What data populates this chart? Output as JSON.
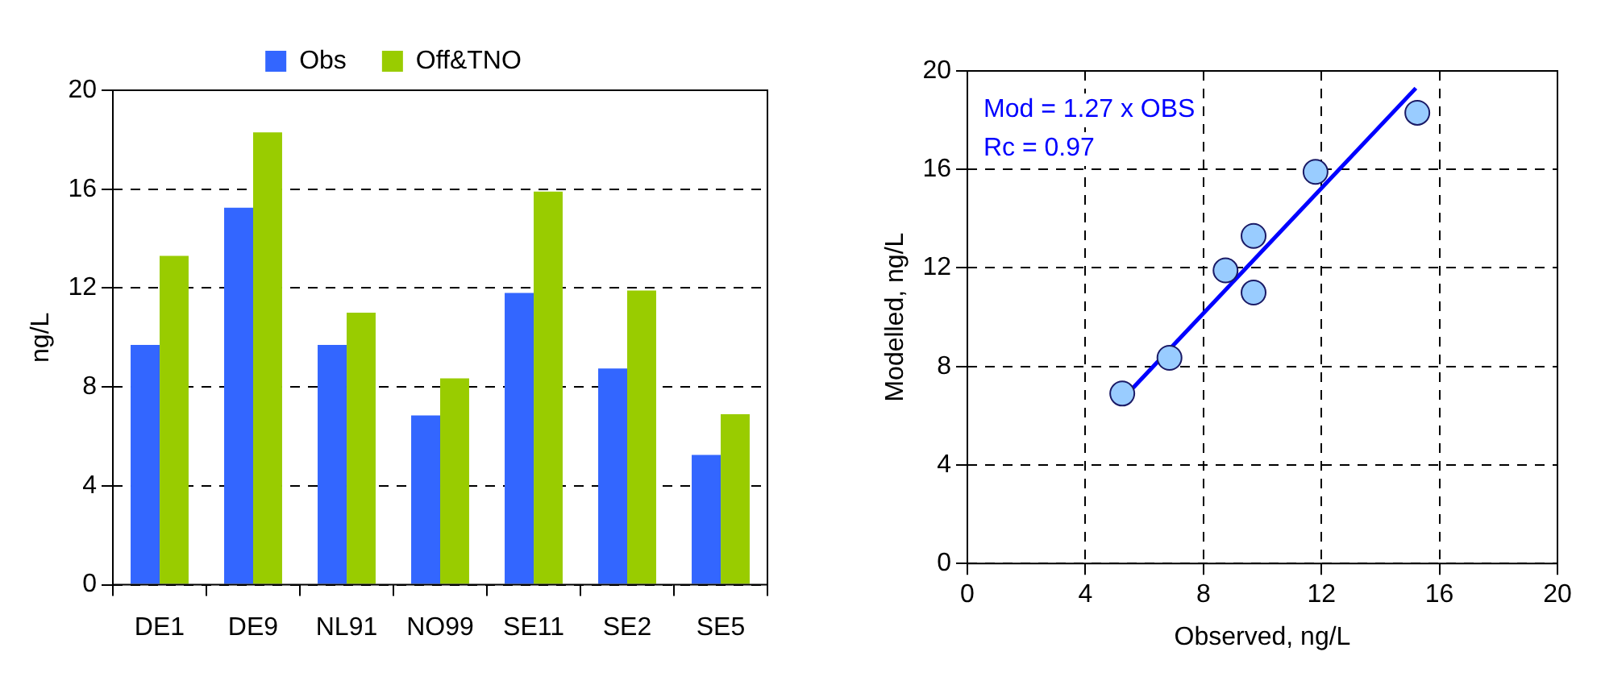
{
  "chart_data": [
    {
      "type": "bar",
      "categories": [
        "DE1",
        "DE9",
        "NL91",
        "NO99",
        "SE11",
        "SE2",
        "SE5"
      ],
      "ylabel": "ng/L",
      "ylim": [
        0,
        20
      ],
      "yticks": [
        0,
        4,
        8,
        12,
        16,
        20
      ],
      "grid": "y",
      "legend": "top",
      "series": [
        {
          "name": "Obs",
          "color": "#3366ff",
          "values": [
            9.7,
            15.25,
            9.7,
            6.85,
            11.8,
            8.75,
            5.25
          ]
        },
        {
          "name": "Off&TNO",
          "color": "#99cc00",
          "values": [
            13.3,
            18.3,
            11.0,
            8.35,
            15.9,
            11.9,
            6.9
          ]
        }
      ]
    },
    {
      "type": "scatter",
      "xlabel": "Observed, ng/L",
      "ylabel": "Modelled, ng/L",
      "xlim": [
        0,
        20
      ],
      "ylim": [
        0,
        20
      ],
      "xticks": [
        0,
        4,
        8,
        12,
        16,
        20
      ],
      "yticks": [
        0,
        4,
        8,
        12,
        16,
        20
      ],
      "grid": true,
      "annotations": [
        "Mod = 1.27 x OBS",
        "Rc = 0.97"
      ],
      "series": [
        {
          "type": "scatter",
          "marker": "circle",
          "color": "#99ccff",
          "x": [
            9.7,
            15.25,
            9.7,
            6.85,
            11.8,
            8.75,
            5.25
          ],
          "values": [
            13.3,
            18.3,
            11.0,
            8.35,
            15.9,
            11.9,
            6.9
          ]
        },
        {
          "type": "line",
          "marker": "none",
          "color": "#0000ff",
          "x": [
            5.3,
            15.2
          ],
          "values": [
            6.73,
            19.3
          ]
        }
      ]
    }
  ]
}
